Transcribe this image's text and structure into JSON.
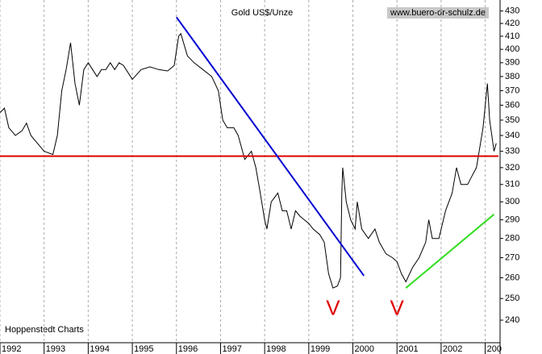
{
  "chart_data": {
    "type": "line",
    "title": "Gold US$/Unze",
    "subtitle": "www.buero-dr-schulz.de",
    "source": "Hoppenstedt Charts",
    "log_y": true,
    "grid": "x",
    "xlim": [
      1992,
      2003.3
    ],
    "ylim": [
      230,
      439
    ],
    "xticks": [
      1992,
      1993,
      1994,
      1995,
      1996,
      1997,
      1998,
      1999,
      2000,
      2001,
      2002,
      {
        "value": 2003,
        "label": "200"
      }
    ],
    "yticks": [
      240,
      250,
      260,
      270,
      280,
      290,
      300,
      310,
      320,
      330,
      340,
      350,
      360,
      370,
      380,
      390,
      400,
      410,
      420,
      430
    ],
    "series": [
      {
        "color": "#000000",
        "x": [
          1992.0,
          1992.1,
          1992.2,
          1992.35,
          1992.5,
          1992.6,
          1992.7,
          1992.85,
          1993.0,
          1993.2,
          1993.3,
          1993.4,
          1993.5,
          1993.6,
          1993.7,
          1993.8,
          1993.9,
          1994.0,
          1994.1,
          1994.2,
          1994.3,
          1994.4,
          1994.5,
          1994.6,
          1994.7,
          1994.8,
          1995.0,
          1995.2,
          1995.4,
          1995.6,
          1995.8,
          1995.95,
          1996.05,
          1996.1,
          1996.25,
          1996.4,
          1996.6,
          1996.8,
          1996.95,
          1997.05,
          1997.15,
          1997.3,
          1997.4,
          1997.55,
          1997.7,
          1997.8,
          1997.9,
          1998.0,
          1998.05,
          1998.15,
          1998.3,
          1998.4,
          1998.5,
          1998.6,
          1998.7,
          1998.8,
          1998.9,
          1999.0,
          1999.1,
          1999.25,
          1999.35,
          1999.45,
          1999.55,
          1999.65,
          1999.72,
          1999.75,
          1999.77,
          1999.85,
          1999.95,
          2000.05,
          2000.1,
          2000.2,
          2000.35,
          2000.5,
          2000.6,
          2000.75,
          2000.9,
          2001.0,
          2001.1,
          2001.2,
          2001.35,
          2001.5,
          2001.65,
          2001.72,
          2001.8,
          2001.95,
          2002.1,
          2002.25,
          2002.35,
          2002.45,
          2002.6,
          2002.7,
          2002.8,
          2002.95,
          2003.05,
          2003.1,
          2003.2,
          2003.25
        ],
        "values": [
          355,
          358,
          345,
          340,
          343,
          348,
          340,
          335,
          330,
          328,
          340,
          370,
          385,
          405,
          375,
          360,
          385,
          390,
          385,
          380,
          385,
          385,
          390,
          385,
          390,
          388,
          378,
          385,
          387,
          385,
          384,
          388,
          410,
          412,
          395,
          390,
          385,
          380,
          370,
          350,
          345,
          345,
          340,
          325,
          330,
          320,
          305,
          290,
          285,
          300,
          305,
          295,
          295,
          285,
          295,
          292,
          290,
          288,
          285,
          282,
          278,
          262,
          255,
          256,
          260,
          305,
          320,
          300,
          290,
          285,
          300,
          285,
          280,
          285,
          278,
          272,
          270,
          268,
          262,
          258,
          265,
          270,
          278,
          290,
          280,
          280,
          295,
          305,
          320,
          310,
          310,
          315,
          320,
          345,
          375,
          350,
          330,
          335
        ]
      }
    ],
    "reference_lines": [
      {
        "color": "#e00000",
        "x": [
          1992,
          2003.3
        ],
        "values": [
          327,
          327
        ]
      },
      {
        "color": "#0000d0",
        "x": [
          1996.0,
          2000.25
        ],
        "values": [
          425,
          261
        ]
      },
      {
        "color": "#33dd22",
        "x": [
          2001.2,
          2003.2
        ],
        "values": [
          255,
          293
        ]
      }
    ],
    "annotations": [
      {
        "text": "V",
        "x": 1999.55,
        "y": 245
      },
      {
        "text": "V",
        "x": 2001.0,
        "y": 245
      }
    ]
  }
}
